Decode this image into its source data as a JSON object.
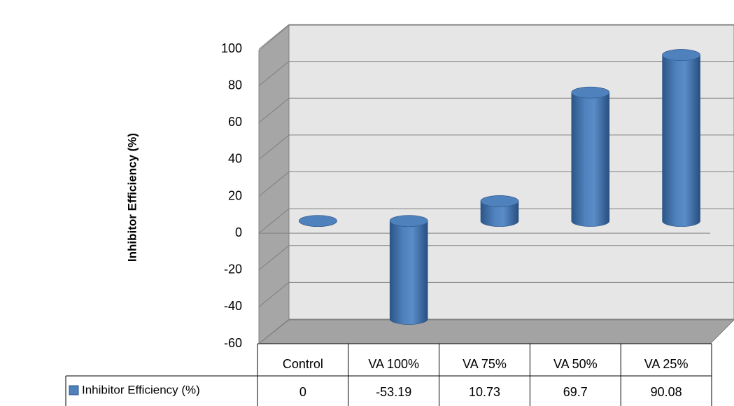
{
  "chart_data": {
    "type": "bar",
    "ylabel": "Inhibitor Efficiency (%)",
    "categories": [
      "Control",
      "VA 100%",
      "VA 75%",
      "VA 50%",
      "VA 25%"
    ],
    "series": [
      {
        "name": "Inhibitor Efficiency (%)",
        "color": "#4f81bd",
        "values": [
          0,
          -53.19,
          10.73,
          69.7,
          90.08
        ]
      }
    ],
    "ylim": [
      -60,
      100
    ],
    "yticks": [
      -60,
      -40,
      -20,
      0,
      20,
      40,
      60,
      80,
      100
    ],
    "grid": true
  }
}
